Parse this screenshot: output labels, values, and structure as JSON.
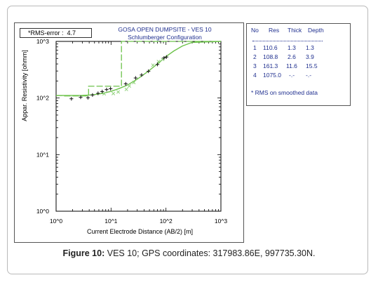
{
  "chart_data": {
    "type": "line",
    "title": "GOSA OPEN DUMPSITE - VES 10",
    "subtitle": "Schlumberger Configuration",
    "xlabel": "Current Electrode Distance (AB/2) [m]",
    "ylabel": "Appar. Resistivity [ohmm]",
    "x_scale": "log",
    "y_scale": "log",
    "xlim": [
      1,
      1000
    ],
    "ylim": [
      1,
      1000
    ],
    "x_ticks": [
      "10^0",
      "10^1",
      "10^2",
      "10^3"
    ],
    "y_ticks": [
      "10^0",
      "10^1",
      "10^2",
      "10^3"
    ],
    "grid": false,
    "rms_label": "*RMS-error :",
    "rms_value": "4.7",
    "observed_plus": [
      {
        "x": 1.9,
        "y": 97
      },
      {
        "x": 2.8,
        "y": 103
      },
      {
        "x": 3.8,
        "y": 101
      },
      {
        "x": 4.6,
        "y": 113
      },
      {
        "x": 5.8,
        "y": 121
      },
      {
        "x": 6.9,
        "y": 130
      },
      {
        "x": 8.3,
        "y": 141
      },
      {
        "x": 9.8,
        "y": 146
      },
      {
        "x": 18.5,
        "y": 178
      },
      {
        "x": 28,
        "y": 226
      },
      {
        "x": 36,
        "y": 255
      },
      {
        "x": 48,
        "y": 297
      },
      {
        "x": 70,
        "y": 392
      },
      {
        "x": 92,
        "y": 510
      },
      {
        "x": 102,
        "y": 530
      }
    ],
    "smoothed_x": [
      {
        "x": 7.5,
        "y": 119
      },
      {
        "x": 11,
        "y": 120
      },
      {
        "x": 13.5,
        "y": 128
      },
      {
        "x": 19,
        "y": 142
      },
      {
        "x": 21.5,
        "y": 163
      },
      {
        "x": 26,
        "y": 188
      },
      {
        "x": 58,
        "y": 380
      },
      {
        "x": 73,
        "y": 440
      },
      {
        "x": 87,
        "y": 480
      }
    ],
    "calculated_curve": [
      {
        "x": 1.0,
        "y": 110.6
      },
      {
        "x": 2.0,
        "y": 110.8
      },
      {
        "x": 3.0,
        "y": 111.5
      },
      {
        "x": 4.0,
        "y": 113
      },
      {
        "x": 5.0,
        "y": 115
      },
      {
        "x": 7.0,
        "y": 121
      },
      {
        "x": 10,
        "y": 131
      },
      {
        "x": 14,
        "y": 147
      },
      {
        "x": 20,
        "y": 170
      },
      {
        "x": 30,
        "y": 215
      },
      {
        "x": 45,
        "y": 285
      },
      {
        "x": 70,
        "y": 400
      },
      {
        "x": 100,
        "y": 540
      },
      {
        "x": 140,
        "y": 680
      },
      {
        "x": 200,
        "y": 830
      },
      {
        "x": 300,
        "y": 960
      },
      {
        "x": 1000,
        "y": 1000
      }
    ],
    "layer_model": [
      {
        "res": 110.6,
        "top": 1.0,
        "bottom": 1.3
      },
      {
        "res": 108.8,
        "top": 1.3,
        "bottom": 3.9
      },
      {
        "res": 161.3,
        "top": 3.9,
        "bottom": 15.5
      },
      {
        "res": 1075.0,
        "top": 15.5,
        "bottom": 1000
      }
    ],
    "model_table": {
      "headers": [
        "No",
        "Res",
        "Thick",
        "Depth"
      ],
      "separator": "-------------------------------",
      "rows": [
        [
          "1",
          "110.6",
          "1.3",
          "1.3"
        ],
        [
          "2",
          "108.8",
          "2.6",
          "3.9"
        ],
        [
          "3",
          "161.3",
          "11.6",
          "15.5"
        ],
        [
          "4",
          "1075.0",
          "-.-",
          "-.-"
        ]
      ],
      "note": "* RMS on smoothed data"
    },
    "colors": {
      "curve": "#6cc24a",
      "observed": "#111111",
      "smoothed": "#8fd17a",
      "text_blue": "#1f2f8f",
      "axes": "#000000"
    }
  },
  "caption": {
    "label": "Figure 10:",
    "text": " VES 10; GPS coordinates: 317983.86E, 997735.30N."
  }
}
